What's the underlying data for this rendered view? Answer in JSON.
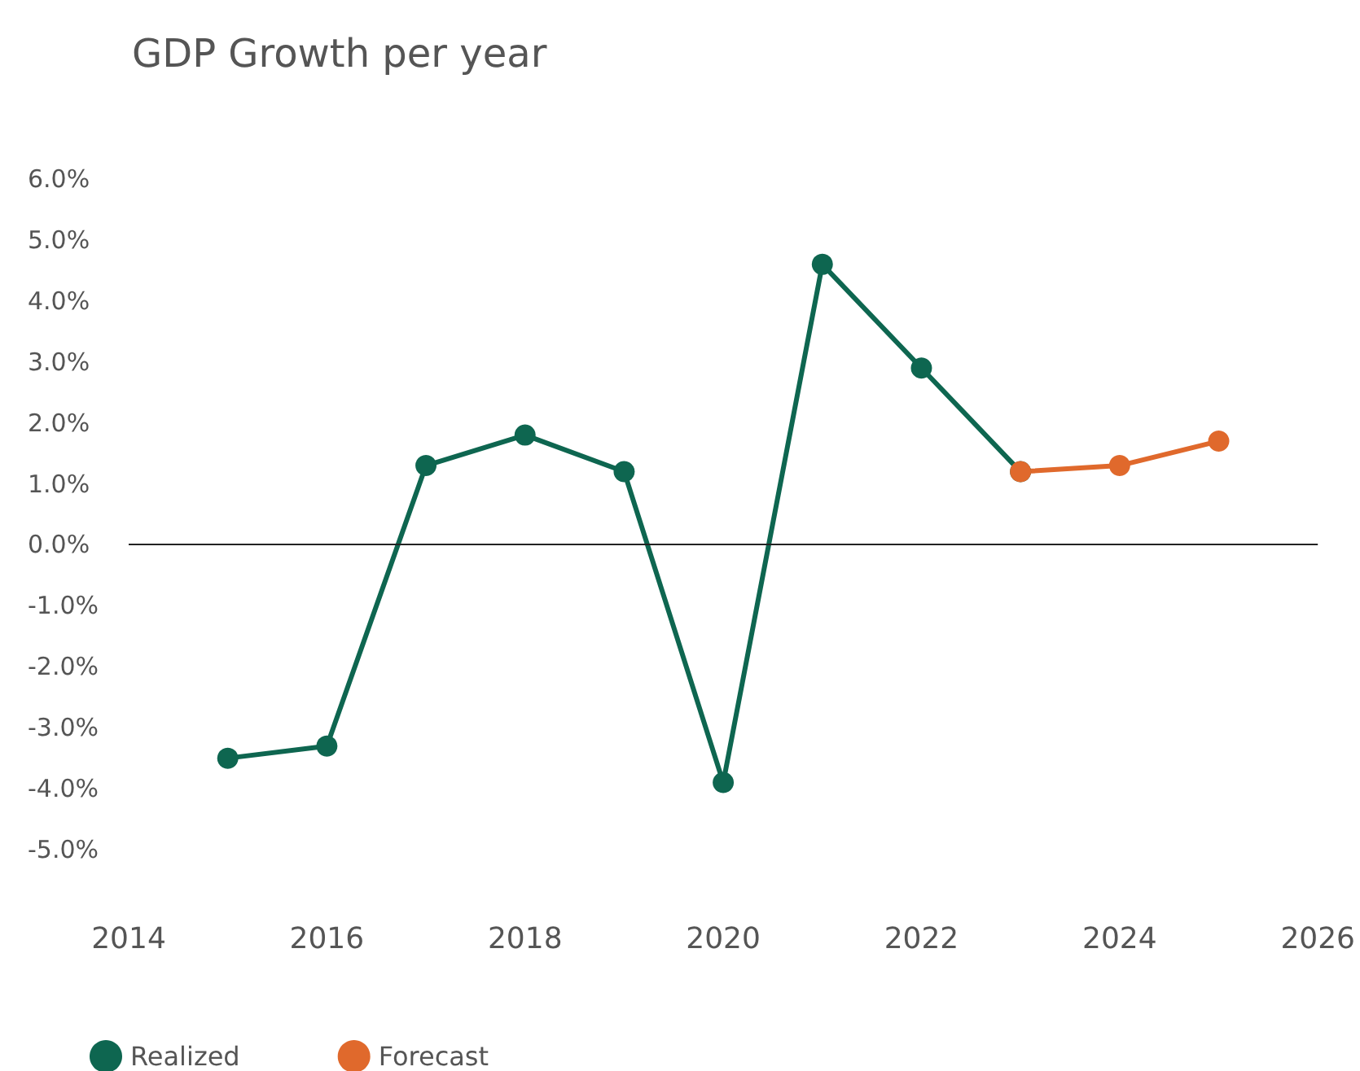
{
  "chart_data": {
    "type": "line",
    "title": "GDP Growth per year",
    "series": [
      {
        "name": "Realized",
        "color": "#0e6650",
        "x": [
          2015,
          2016,
          2017,
          2018,
          2019,
          2020,
          2021,
          2022,
          2023
        ],
        "values": [
          -3.5,
          -3.3,
          1.3,
          1.8,
          1.2,
          -3.9,
          4.6,
          2.9,
          1.2
        ]
      },
      {
        "name": "Forecast",
        "color": "#e0692c",
        "x": [
          2023,
          2024,
          2025
        ],
        "values": [
          1.2,
          1.3,
          1.7
        ]
      }
    ],
    "xlim": [
      2014,
      2026
    ],
    "xticks": [
      2014,
      2016,
      2018,
      2020,
      2022,
      2024,
      2026
    ],
    "ylim": [
      -5,
      6
    ],
    "yticks": [
      {
        "value": -5,
        "label": "-5.0%"
      },
      {
        "value": -4,
        "label": "-4.0%"
      },
      {
        "value": -3,
        "label": "-3.0%"
      },
      {
        "value": -2,
        "label": "-2.0%"
      },
      {
        "value": -1,
        "label": "-1.0%"
      },
      {
        "value": 0,
        "label": "0.0%"
      },
      {
        "value": 1,
        "label": "1.0%"
      },
      {
        "value": 2,
        "label": "2.0%"
      },
      {
        "value": 3,
        "label": "3.0%"
      },
      {
        "value": 4,
        "label": "4.0%"
      },
      {
        "value": 5,
        "label": "5.0%"
      },
      {
        "value": 6,
        "label": "6.0%"
      }
    ],
    "ref_lines": [
      {
        "axis": "y",
        "value": 0,
        "color": "#222222"
      }
    ],
    "grid": false,
    "legend": "bottom left",
    "marker": "circle",
    "line_style": "solid"
  }
}
